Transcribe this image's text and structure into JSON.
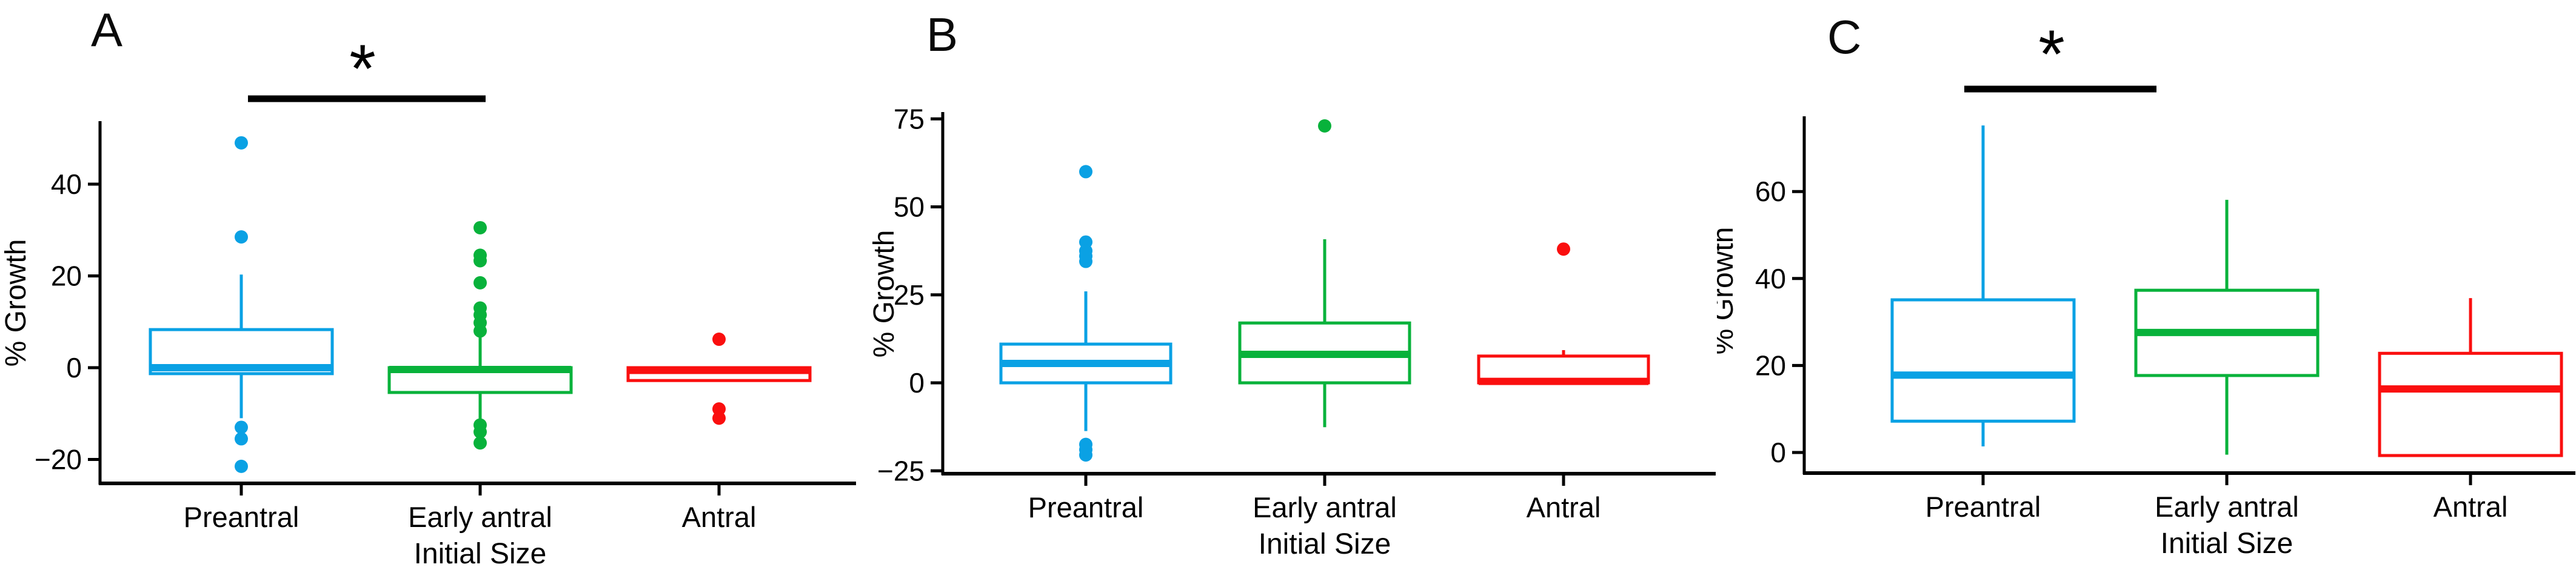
{
  "figure": {
    "background": "#ffffff",
    "axis_color": "#000000",
    "series_colors": {
      "preantral": "#0AA1E4",
      "early_antral": "#08B23B",
      "antral": "#FA0F0F"
    },
    "categories": [
      "Preantral",
      "Early antral",
      "Antral"
    ],
    "ylabel": "% Growth",
    "xlabel": "Initial Size"
  },
  "chart_data": [
    {
      "type": "boxplot",
      "letter": "A",
      "ylabel": "% Growth",
      "xlabel": "Initial Size",
      "categories": [
        "Preantral",
        "Early antral",
        "Antral"
      ],
      "yticks": [
        40,
        20,
        0,
        -20
      ],
      "ytick_labels": [
        "40",
        "20",
        "0",
        "−20"
      ],
      "ylim": [
        -25,
        55
      ],
      "grid": false,
      "legend": "none",
      "series": [
        {
          "name": "Preantral",
          "color": "#0AA1E4",
          "whislo": -11,
          "q1": -1.3,
          "med": 0,
          "q3": 8.3,
          "whishi": 20.3,
          "outliers": [
            49,
            28.5,
            -13,
            -15.5,
            -21.5
          ]
        },
        {
          "name": "Early antral",
          "color": "#08B23B",
          "whislo": -12,
          "q1": -5.4,
          "med": -0.4,
          "q3": 0,
          "whishi": 6.9,
          "outliers": [
            30.5,
            24.5,
            23.3,
            18.5,
            13,
            11.5,
            9.8,
            8,
            -12.5,
            -14,
            -16.4
          ]
        },
        {
          "name": "Antral",
          "color": "#FA0F0F",
          "whislo": -2.8,
          "q1": -2.8,
          "med": -0.6,
          "q3": 0,
          "whishi": 0,
          "outliers": [
            6.2,
            -9,
            -11
          ]
        }
      ],
      "significance": {
        "label": "*",
        "between": [
          "Preantral",
          "Early antral"
        ]
      }
    },
    {
      "type": "boxplot",
      "letter": "B",
      "ylabel": "% Growth",
      "xlabel": "Initial Size",
      "categories": [
        "Preantral",
        "Early antral",
        "Antral"
      ],
      "yticks": [
        75,
        50,
        25,
        0,
        -25
      ],
      "ytick_labels": [
        "75",
        "50",
        "25",
        "0",
        "−25"
      ],
      "ylim": [
        -26,
        78
      ],
      "grid": false,
      "legend": "none",
      "series": [
        {
          "name": "Preantral",
          "color": "#0AA1E4",
          "whislo": -13.7,
          "q1": 0,
          "med": 5.5,
          "q3": 11,
          "whishi": 26,
          "outliers": [
            60,
            40,
            37.5,
            36,
            34.5,
            -17.5,
            -19,
            -20.5
          ]
        },
        {
          "name": "Early antral",
          "color": "#08B23B",
          "whislo": -12.6,
          "q1": 0,
          "med": 8.1,
          "q3": 17,
          "whishi": 40.8,
          "outliers": [
            73
          ]
        },
        {
          "name": "Antral",
          "color": "#FA0F0F",
          "whislo": 0,
          "q1": 0,
          "med": 0.4,
          "q3": 7.6,
          "whishi": 9.3,
          "outliers": [
            38
          ]
        }
      ],
      "significance": null
    },
    {
      "type": "boxplot",
      "letter": "C",
      "ylabel": "% Growth",
      "xlabel": "Initial Size",
      "categories": [
        "Preantral",
        "Early antral",
        "Antral"
      ],
      "yticks": [
        60,
        40,
        20,
        0
      ],
      "ytick_labels": [
        "60",
        "40",
        "20",
        "0"
      ],
      "ylim": [
        -5,
        77
      ],
      "grid": false,
      "legend": "none",
      "series": [
        {
          "name": "Preantral",
          "color": "#0AA1E4",
          "whislo": 1.4,
          "q1": 7.2,
          "med": 17.8,
          "q3": 35.1,
          "whishi": 75.2,
          "outliers": []
        },
        {
          "name": "Early antral",
          "color": "#08B23B",
          "whislo": -0.5,
          "q1": 17.7,
          "med": 27.6,
          "q3": 37.3,
          "whishi": 58.1,
          "outliers": []
        },
        {
          "name": "Antral",
          "color": "#FA0F0F",
          "whislo": -0.7,
          "q1": -0.7,
          "med": 14.6,
          "q3": 22.8,
          "whishi": 35.5,
          "outliers": []
        }
      ],
      "significance": {
        "label": "*",
        "between": [
          "Preantral",
          "Early antral"
        ]
      }
    }
  ]
}
